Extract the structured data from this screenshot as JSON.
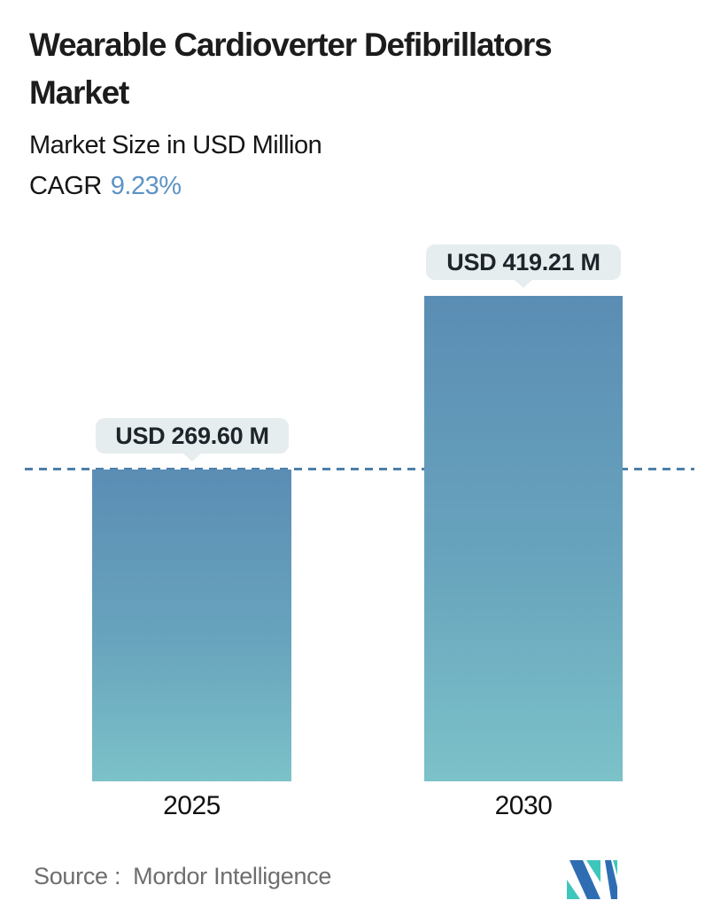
{
  "header": {
    "title_line1": "Wearable Cardioverter Defibrillators",
    "title_line2": "Market",
    "subtitle": "Market Size in USD Million",
    "cagr_label": "CAGR",
    "cagr_value": "9.23%"
  },
  "chart_data": {
    "type": "bar",
    "title": "Wearable Cardioverter Defibrillators Market",
    "subtitle": "Market Size in USD Million",
    "cagr_percent": 9.23,
    "categories": [
      "2025",
      "2030"
    ],
    "values": [
      269.6,
      419.21
    ],
    "value_labels": [
      "USD 269.60 M",
      "USD 419.21 M"
    ],
    "unit": "USD Million",
    "ylim": [
      0,
      419.21
    ],
    "reference_line": 269.6,
    "grid": false,
    "legend": "none"
  },
  "footer": {
    "source_label": "Source :",
    "source_value": "Mordor Intelligence",
    "logo": "mordor-intelligence-logo"
  },
  "colors": {
    "accent_blue": "#5e93c5",
    "bar_gradient_top": "#5b8db4",
    "bar_gradient_bottom": "#7cc2c9",
    "reference_line": "#4d7fa9",
    "tooltip_bg": "#e6edef",
    "text_dark": "#1c1c1c",
    "source_gray": "#6e6e6e",
    "logo_teal": "#3fc6bc",
    "logo_blue": "#2f6db3"
  }
}
